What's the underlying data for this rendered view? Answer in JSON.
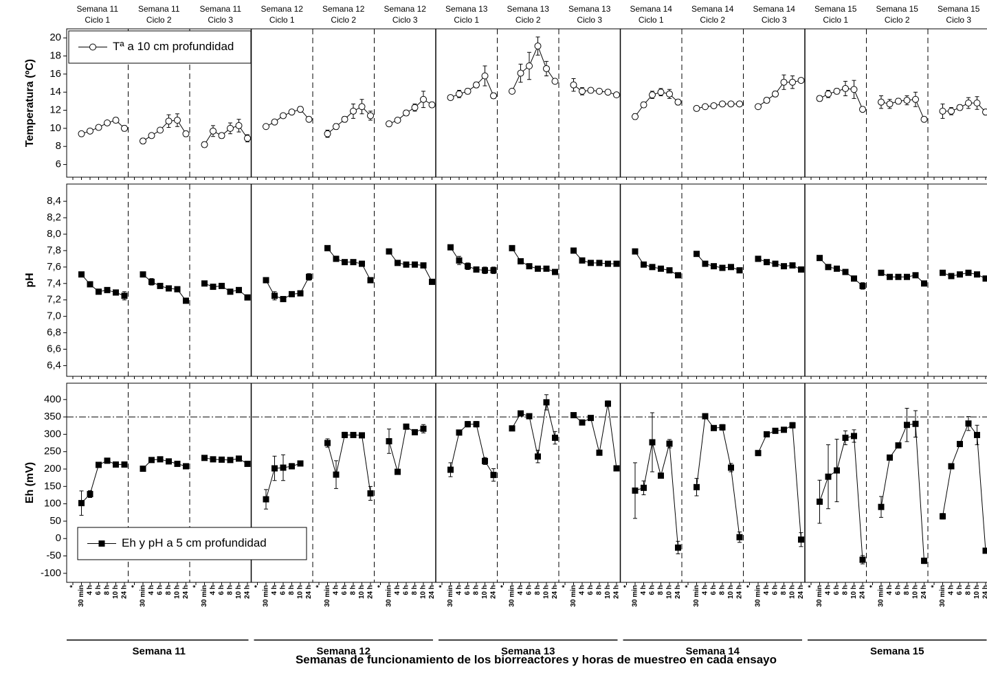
{
  "chart_data": {
    "type": "line",
    "x_label": "Semanas de funcionamiento de los biorreactores y horas de muestreo en cada ensayo",
    "weeks": [
      "Semana 11",
      "Semana 12",
      "Semana 13",
      "Semana 14",
      "Semana 15"
    ],
    "cycles": [
      [
        "Semana 11",
        "Ciclo 1"
      ],
      [
        "Semana 11",
        "Ciclo 2"
      ],
      [
        "Semana 11",
        "Ciclo 3"
      ],
      [
        "Semana 12",
        "Ciclo 1"
      ],
      [
        "Semana 12",
        "Ciclo 2"
      ],
      [
        "Semana 12",
        "Ciclo 3"
      ],
      [
        "Semana 13",
        "Ciclo 1"
      ],
      [
        "Semana 13",
        "Ciclo 2"
      ],
      [
        "Semana 13",
        "Ciclo 3"
      ],
      [
        "Semana 14",
        "Ciclo 1"
      ],
      [
        "Semana 14",
        "Ciclo 2"
      ],
      [
        "Semana 14",
        "Ciclo 3"
      ],
      [
        "Semana 15",
        "Ciclo 1"
      ],
      [
        "Semana 15",
        "Ciclo 2"
      ],
      [
        "Semana 15",
        "Ciclo 3"
      ]
    ],
    "hours": [
      "*",
      "30 min",
      "4 h",
      "6 h",
      "8 h",
      "10 h",
      "24 h"
    ],
    "panels": [
      {
        "y_label": "Temperatura (ºC)",
        "ylim": [
          4.6,
          21
        ],
        "yticks": [
          6,
          8,
          10,
          12,
          14,
          16,
          18,
          20
        ],
        "legend": "upper left",
        "series": [
          {
            "name": "Tª a 10 cm profundidad",
            "marker": "circle",
            "color": "#000000",
            "values": [
              [
                null,
                9.4,
                9.7,
                10.1,
                10.6,
                10.9,
                10.0
              ],
              [
                null,
                8.6,
                9.2,
                9.8,
                10.8,
                10.9,
                9.4
              ],
              [
                null,
                8.2,
                9.7,
                9.2,
                10.0,
                10.3,
                8.9
              ],
              [
                null,
                10.2,
                10.7,
                11.4,
                11.8,
                12.1,
                11.0
              ],
              [
                null,
                9.4,
                10.2,
                11.0,
                11.9,
                12.4,
                11.4
              ],
              [
                null,
                10.5,
                10.9,
                11.7,
                12.3,
                13.2,
                12.6
              ],
              [
                null,
                13.4,
                13.8,
                14.1,
                14.8,
                15.8,
                13.6
              ],
              [
                null,
                14.1,
                16.1,
                16.9,
                19.1,
                16.6,
                15.2
              ],
              [
                null,
                14.8,
                14.1,
                14.2,
                14.1,
                14.0,
                13.7
              ],
              [
                null,
                11.3,
                12.6,
                13.7,
                14.0,
                13.8,
                12.9
              ],
              [
                null,
                12.2,
                12.4,
                12.5,
                12.7,
                12.7,
                12.7
              ],
              [
                null,
                12.4,
                13.1,
                13.8,
                15.1,
                15.1,
                15.3
              ],
              [
                null,
                13.3,
                13.8,
                14.1,
                14.4,
                14.3,
                12.1
              ],
              [
                null,
                12.9,
                12.7,
                13.0,
                13.1,
                13.2,
                11.0
              ],
              [
                null,
                11.9,
                11.9,
                12.3,
                12.8,
                12.8,
                11.8
              ]
            ],
            "errors": [
              [
                null,
                0.2,
                0.2,
                0.2,
                0.2,
                0.3,
                0.3
              ],
              [
                null,
                0.3,
                0.2,
                0.2,
                0.7,
                0.7,
                0.3
              ],
              [
                null,
                0.3,
                0.6,
                0.3,
                0.6,
                0.7,
                0.4
              ],
              [
                null,
                0.2,
                0.2,
                0.2,
                0.2,
                0.3,
                0.2
              ],
              [
                null,
                0.4,
                0.3,
                0.3,
                0.8,
                0.8,
                0.5
              ],
              [
                null,
                0.2,
                0.2,
                0.3,
                0.4,
                0.9,
                0.3
              ],
              [
                null,
                0.2,
                0.4,
                0.3,
                0.3,
                1.1,
                0.3
              ],
              [
                null,
                0.2,
                1.0,
                1.5,
                1.0,
                0.8,
                0.2
              ],
              [
                null,
                0.7,
                0.4,
                0.2,
                0.2,
                0.2,
                0.2
              ],
              [
                null,
                0.3,
                0.3,
                0.4,
                0.4,
                0.5,
                0.3
              ],
              [
                null,
                0.1,
                0.1,
                0.1,
                0.1,
                0.1,
                0.1
              ],
              [
                null,
                0.2,
                0.3,
                0.3,
                0.8,
                0.7,
                0.2
              ],
              [
                null,
                0.3,
                0.4,
                0.3,
                0.8,
                1.0,
                0.2
              ],
              [
                null,
                0.7,
                0.5,
                0.3,
                0.5,
                0.8,
                0.2
              ],
              [
                null,
                0.8,
                0.4,
                0.3,
                0.6,
                0.7,
                0.3
              ]
            ]
          }
        ]
      },
      {
        "y_label": "pH",
        "ylim": [
          6.27,
          8.61
        ],
        "yticks": [
          {
            "value": 6.4,
            "label": "6,4"
          },
          {
            "value": 6.6,
            "label": "6,6"
          },
          {
            "value": 6.8,
            "label": "6,8"
          },
          {
            "value": 7.0,
            "label": "7,0"
          },
          {
            "value": 7.2,
            "label": "7,2"
          },
          {
            "value": 7.4,
            "label": "7,4"
          },
          {
            "value": 7.6,
            "label": "7,6"
          },
          {
            "value": 7.8,
            "label": "7,8"
          },
          {
            "value": 8.0,
            "label": "8,0"
          },
          {
            "value": 8.2,
            "label": "8,2"
          },
          {
            "value": 8.4,
            "label": "8,4"
          }
        ],
        "series": [
          {
            "marker": "square",
            "color": "#000000",
            "values": [
              [
                null,
                7.51,
                7.39,
                7.3,
                7.32,
                7.29,
                7.25
              ],
              [
                null,
                7.51,
                7.42,
                7.37,
                7.34,
                7.33,
                7.19
              ],
              [
                null,
                7.4,
                7.36,
                7.37,
                7.3,
                7.32,
                7.23
              ],
              [
                null,
                7.44,
                7.25,
                7.21,
                7.27,
                7.28,
                7.48
              ],
              [
                null,
                7.83,
                7.7,
                7.66,
                7.66,
                7.64,
                7.44
              ],
              [
                null,
                7.79,
                7.65,
                7.63,
                7.63,
                7.62,
                7.42
              ],
              [
                null,
                7.84,
                7.68,
                7.61,
                7.57,
                7.56,
                7.56
              ],
              [
                null,
                7.83,
                7.67,
                7.61,
                7.58,
                7.58,
                7.54
              ],
              [
                null,
                7.8,
                7.68,
                7.65,
                7.65,
                7.64,
                7.64
              ],
              [
                null,
                7.79,
                7.63,
                7.6,
                7.58,
                7.56,
                7.5
              ],
              [
                null,
                7.76,
                7.64,
                7.61,
                7.59,
                7.6,
                7.56
              ],
              [
                null,
                7.7,
                7.66,
                7.64,
                7.61,
                7.62,
                7.57
              ],
              [
                null,
                7.71,
                7.6,
                7.58,
                7.54,
                7.46,
                7.37
              ],
              [
                null,
                7.53,
                7.48,
                7.48,
                7.48,
                7.5,
                7.4
              ],
              [
                null,
                7.53,
                7.49,
                7.51,
                7.53,
                7.51,
                7.46
              ]
            ],
            "errors": [
              [
                null,
                0.02,
                0.02,
                0.02,
                0.02,
                0.02,
                0.05
              ],
              [
                null,
                0.02,
                0.04,
                0.02,
                0.02,
                0.02,
                0.01
              ],
              [
                null,
                0.03,
                0.02,
                0.02,
                0.02,
                0.02,
                0.01
              ],
              [
                null,
                0.02,
                0.05,
                0.03,
                0.02,
                0.02,
                0.04
              ],
              [
                null,
                0.02,
                0.03,
                0.02,
                0.02,
                0.02,
                0.01
              ],
              [
                null,
                0.02,
                0.03,
                0.02,
                0.02,
                0.02,
                0.01
              ],
              [
                null,
                0.02,
                0.05,
                0.04,
                0.03,
                0.04,
                0.04
              ],
              [
                null,
                0.02,
                0.02,
                0.02,
                0.03,
                0.03,
                0.02
              ],
              [
                null,
                0.03,
                0.02,
                0.02,
                0.02,
                0.02,
                0.01
              ],
              [
                null,
                0.03,
                0.03,
                0.03,
                0.03,
                0.03,
                0.03
              ],
              [
                null,
                0.02,
                0.02,
                0.01,
                0.01,
                0.01,
                0.01
              ],
              [
                null,
                0.01,
                0.01,
                0.01,
                0.01,
                0.01,
                0.01
              ],
              [
                null,
                0.01,
                0.03,
                0.03,
                0.03,
                0.03,
                0.04
              ],
              [
                null,
                0.03,
                0.03,
                0.01,
                0.01,
                0.01,
                0.02
              ],
              [
                null,
                0.01,
                0.01,
                0.01,
                0.01,
                0.01,
                0.01
              ]
            ]
          }
        ]
      },
      {
        "y_label": "Eh (mV)",
        "ylim": [
          -126,
          447
        ],
        "yticks": [
          -100,
          -50,
          0,
          50,
          100,
          150,
          200,
          250,
          300,
          350,
          400
        ],
        "reference_line": 350,
        "legend": "lower left",
        "series": [
          {
            "name": "Eh y pH a 5 cm profundidad",
            "marker": "square",
            "color": "#000000",
            "values": [
              [
                null,
                102,
                128,
                212,
                224,
                213,
                213
              ],
              [
                null,
                201,
                226,
                228,
                222,
                215,
                208
              ],
              [
                null,
                232,
                228,
                227,
                226,
                230,
                215
              ],
              [
                null,
                113,
                202,
                204,
                208,
                216,
                null
              ],
              [
                null,
                275,
                184,
                298,
                298,
                297,
                130
              ],
              [
                null,
                280,
                192,
                322,
                306,
                316,
                null
              ],
              [
                null,
                198,
                305,
                329,
                329,
                223,
                183
              ],
              [
                null,
                317,
                360,
                352,
                236,
                392,
                290
              ],
              [
                null,
                355,
                334,
                347,
                247,
                388,
                202
              ],
              [
                null,
                138,
                146,
                277,
                181,
                273,
                -26
              ],
              [
                null,
                148,
                352,
                318,
                320,
                204,
                4
              ],
              [
                null,
                246,
                300,
                310,
                313,
                326,
                -3
              ],
              [
                null,
                106,
                178,
                196,
                290,
                295,
                -61
              ],
              [
                null,
                91,
                233,
                268,
                327,
                330,
                -64
              ],
              [
                null,
                64,
                208,
                272,
                331,
                298,
                -35
              ]
            ],
            "errors": [
              [
                null,
                35,
                10,
                5,
                5,
                5,
                5
              ],
              [
                null,
                5,
                5,
                5,
                5,
                5,
                5
              ],
              [
                null,
                5,
                5,
                5,
                5,
                5,
                5
              ],
              [
                null,
                28,
                35,
                37,
                8,
                5,
                null
              ],
              [
                null,
                12,
                40,
                8,
                5,
                5,
                20
              ],
              [
                null,
                35,
                5,
                5,
                5,
                12,
                null
              ],
              [
                null,
                20,
                5,
                8,
                8,
                10,
                18
              ],
              [
                null,
                5,
                5,
                5,
                18,
                22,
                18
              ],
              [
                null,
                5,
                5,
                5,
                5,
                8,
                5
              ],
              [
                null,
                80,
                20,
                85,
                5,
                12,
                18
              ],
              [
                null,
                25,
                5,
                5,
                8,
                12,
                15
              ],
              [
                null,
                5,
                5,
                5,
                5,
                8,
                20
              ],
              [
                null,
                62,
                92,
                90,
                20,
                18,
                12
              ],
              [
                null,
                30,
                5,
                5,
                48,
                38,
                8
              ],
              [
                null,
                8,
                5,
                5,
                20,
                28,
                5
              ]
            ]
          }
        ]
      }
    ]
  }
}
